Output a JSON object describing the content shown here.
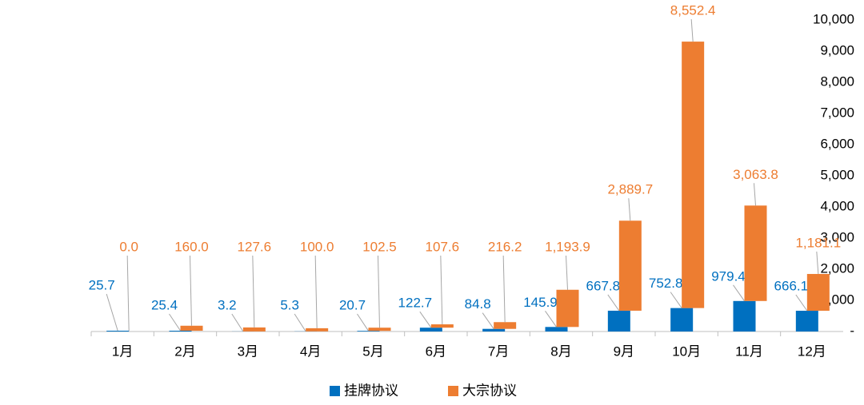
{
  "chart_data": {
    "type": "bar",
    "stacked": true,
    "categories": [
      "1月",
      "2月",
      "3月",
      "4月",
      "5月",
      "6月",
      "7月",
      "8月",
      "9月",
      "10月",
      "11月",
      "12月"
    ],
    "series": [
      {
        "name": "挂牌协议",
        "color": "#0070c0",
        "values": [
          25.7,
          25.4,
          3.2,
          5.3,
          20.7,
          122.7,
          84.8,
          145.9,
          667.8,
          752.8,
          979.4,
          666.1
        ],
        "value_labels": [
          "25.7",
          "25.4",
          "3.2",
          "5.3",
          "20.7",
          "122.7",
          "84.8",
          "145.9",
          "667.8",
          "752.8",
          "979.4",
          "666.1"
        ]
      },
      {
        "name": "大宗协议",
        "color": "#ed7d31",
        "values": [
          0.0,
          160.0,
          127.6,
          100.0,
          102.5,
          107.6,
          216.2,
          1193.9,
          2889.7,
          8552.4,
          3063.8,
          1181.1
        ],
        "value_labels": [
          "0.0",
          "160.0",
          "127.6",
          "100.0",
          "102.5",
          "107.6",
          "216.2",
          "1,193.9",
          "2,889.7",
          "8,552.4",
          "3,063.8",
          "1,181.1"
        ]
      }
    ],
    "ylim": [
      0,
      10000
    ],
    "yticks": [
      {
        "value": 0,
        "label": "-"
      },
      {
        "value": 1000,
        "label": "1,000"
      },
      {
        "value": 2000,
        "label": "2,000"
      },
      {
        "value": 3000,
        "label": "3,000"
      },
      {
        "value": 4000,
        "label": "4,000"
      },
      {
        "value": 5000,
        "label": "5,000"
      },
      {
        "value": 6000,
        "label": "6,000"
      },
      {
        "value": 7000,
        "label": "7,000"
      },
      {
        "value": 8000,
        "label": "8,000"
      },
      {
        "value": 9000,
        "label": "9,000"
      },
      {
        "value": 10000,
        "label": "10,000"
      }
    ],
    "y_axis_side": "right",
    "legend": "bottom"
  }
}
